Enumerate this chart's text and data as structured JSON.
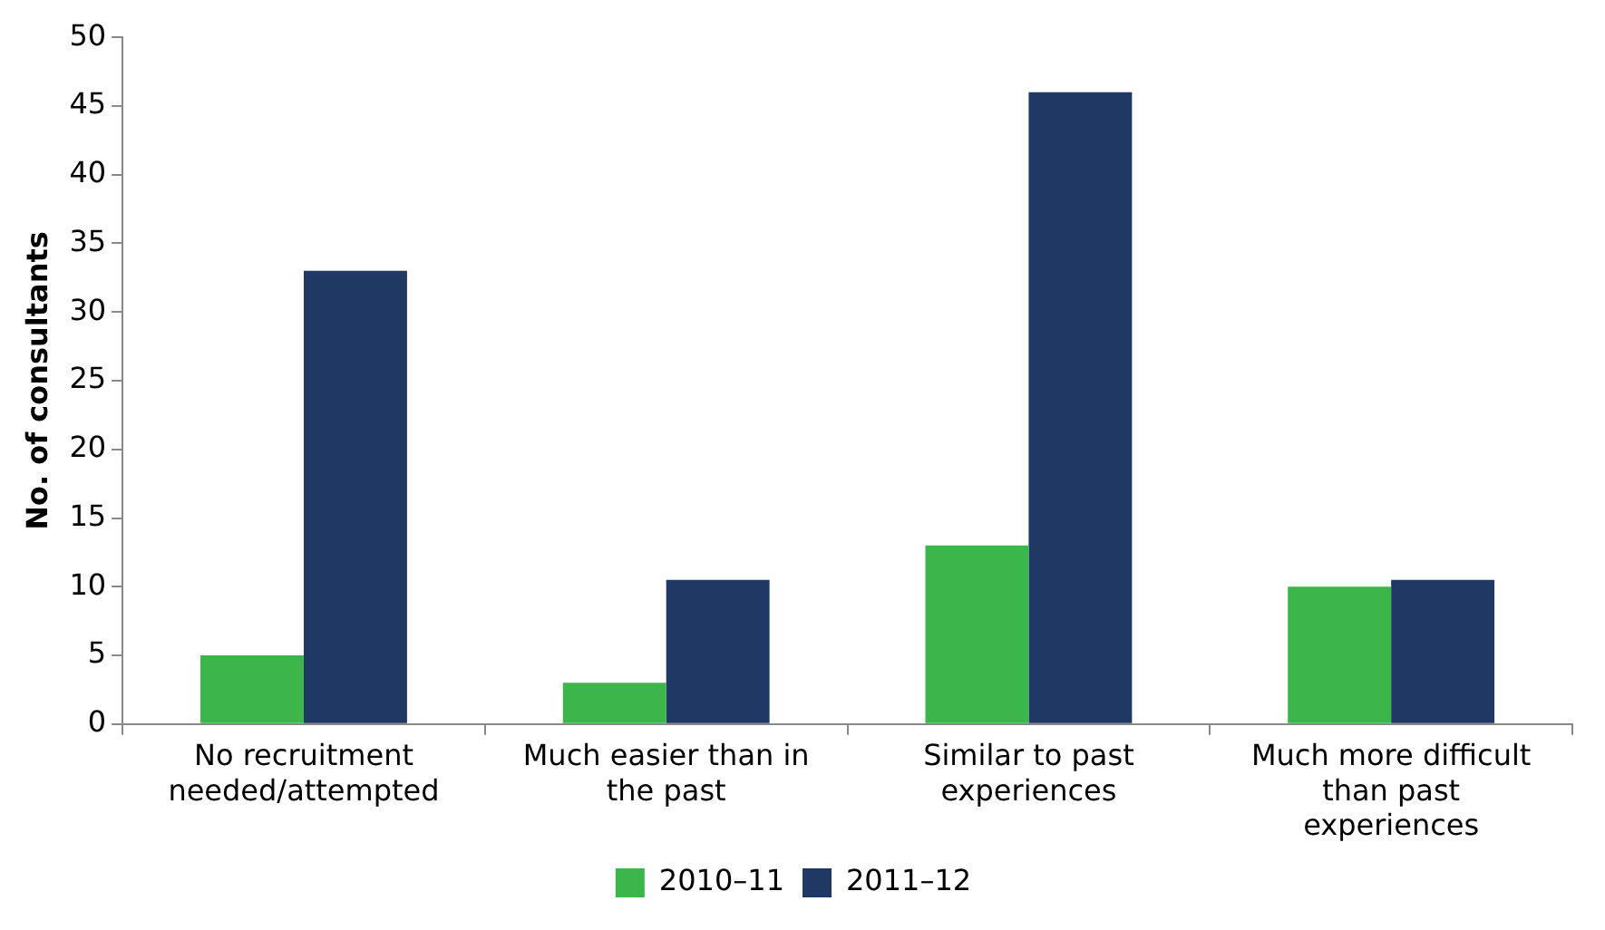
{
  "chart_data": {
    "type": "bar",
    "ylabel": "No. of consultants",
    "categories": [
      "No recruitment needed/attempted",
      "Much easier than in the past",
      "Similar to past experiences",
      "Much more difficult than past experiences"
    ],
    "series": [
      {
        "name": "2010–11",
        "color": "#3cb54a",
        "values": [
          5,
          3,
          13,
          10
        ]
      },
      {
        "name": "2011–12",
        "color": "#1f3864",
        "values": [
          33,
          10.5,
          46,
          10.5
        ]
      }
    ],
    "ylim": [
      0,
      50
    ],
    "yticks": [
      0,
      5,
      10,
      15,
      20,
      25,
      30,
      35,
      40,
      45,
      50
    ],
    "grid": false,
    "legend": "bottom"
  }
}
